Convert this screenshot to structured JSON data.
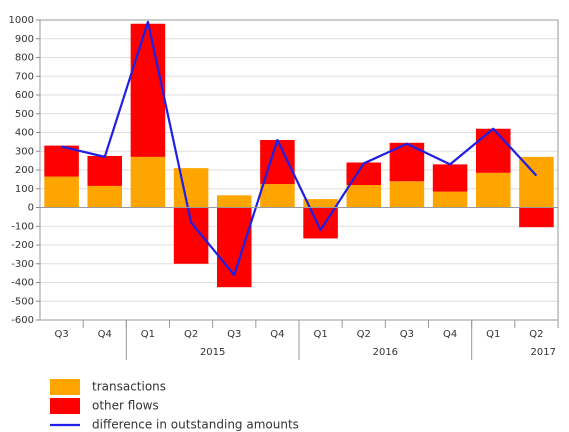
{
  "chart_data": {
    "type": "stacked-bar-line",
    "categories": [
      "Q3",
      "Q4",
      "Q1",
      "Q2",
      "Q3",
      "Q4",
      "Q1",
      "Q2",
      "Q3",
      "Q4",
      "Q1",
      "Q2"
    ],
    "year_groups": [
      {
        "label": null,
        "count": 2
      },
      {
        "label": "2015",
        "count": 4
      },
      {
        "label": "2016",
        "count": 4
      },
      {
        "label": "2017",
        "count": 2
      }
    ],
    "series": [
      {
        "name": "transactions",
        "type": "bar",
        "color": "#ffa500",
        "values": [
          165,
          115,
          270,
          210,
          65,
          125,
          45,
          120,
          140,
          85,
          185,
          270
        ]
      },
      {
        "name": "other flows",
        "type": "bar",
        "color": "#ff0000",
        "values": [
          165,
          160,
          710,
          -300,
          -425,
          235,
          -165,
          120,
          205,
          145,
          235,
          -105
        ]
      },
      {
        "name": "difference in outstanding amounts",
        "type": "line",
        "color": "#1f1fe6",
        "values": [
          325,
          270,
          990,
          -80,
          -360,
          360,
          -120,
          235,
          340,
          230,
          420,
          170
        ]
      }
    ],
    "ylim": [
      -600,
      1000
    ],
    "yticks": [
      -600,
      -500,
      -400,
      -300,
      -200,
      -100,
      0,
      100,
      200,
      300,
      400,
      500,
      600,
      700,
      800,
      900,
      1000
    ],
    "grid": true
  }
}
